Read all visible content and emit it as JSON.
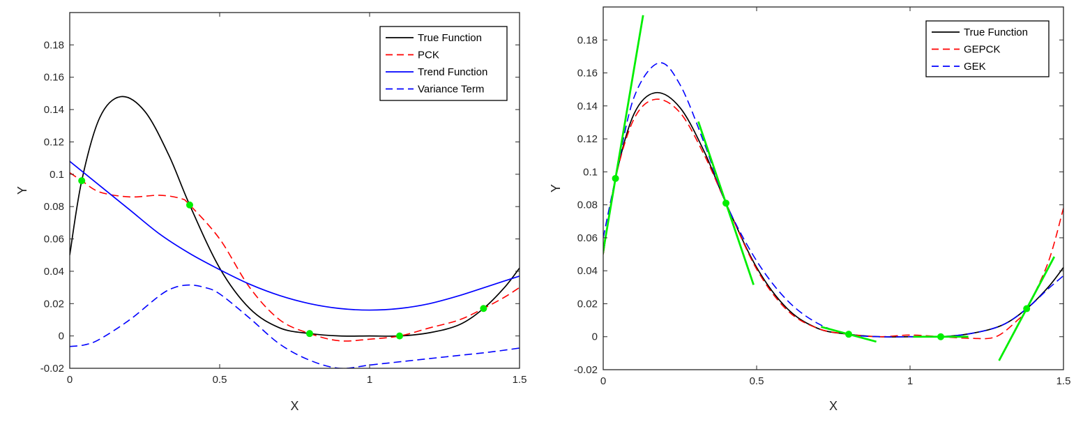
{
  "chart_data": [
    {
      "type": "line",
      "xlabel": "X",
      "ylabel": "Y",
      "xlim": [
        0,
        1.5
      ],
      "ylim": [
        -0.02,
        0.2
      ],
      "xticks": [
        0,
        0.5,
        1,
        1.5
      ],
      "xtick_labels": [
        "0",
        "0.5",
        "1",
        "1.5"
      ],
      "yticks": [
        -0.02,
        0,
        0.02,
        0.04,
        0.06,
        0.08,
        0.1,
        0.12,
        0.14,
        0.16,
        0.18
      ],
      "ytick_labels": [
        "-0.02",
        "0",
        "0.02",
        "0.04",
        "0.06",
        "0.08",
        "0.1",
        "0.12",
        "0.14",
        "0.16",
        "0.18"
      ],
      "grid": false,
      "legend_position": "top-right",
      "series": [
        {
          "name": "True Function",
          "color": "#000000",
          "dash": "solid",
          "x": [
            0,
            0.04,
            0.1,
            0.17,
            0.25,
            0.33,
            0.4,
            0.5,
            0.6,
            0.7,
            0.8,
            0.9,
            1.0,
            1.1,
            1.2,
            1.3,
            1.38,
            1.45,
            1.5
          ],
          "y": [
            0.05,
            0.096,
            0.135,
            0.148,
            0.139,
            0.112,
            0.081,
            0.042,
            0.017,
            0.005,
            0.0015,
            0.0,
            0.0,
            0.0,
            0.002,
            0.007,
            0.017,
            0.03,
            0.042
          ]
        },
        {
          "name": "PCK",
          "color": "#ff0000",
          "dash": "dashed",
          "x": [
            0,
            0.04,
            0.1,
            0.2,
            0.3,
            0.37,
            0.4,
            0.5,
            0.6,
            0.7,
            0.8,
            0.9,
            1.0,
            1.1,
            1.2,
            1.3,
            1.38,
            1.45,
            1.5
          ],
          "y": [
            0.101,
            0.096,
            0.089,
            0.086,
            0.087,
            0.085,
            0.081,
            0.06,
            0.03,
            0.01,
            0.0015,
            -0.003,
            -0.002,
            0.0,
            0.005,
            0.01,
            0.017,
            0.024,
            0.03
          ]
        },
        {
          "name": "Trend Function",
          "color": "#0000ff",
          "dash": "solid",
          "x": [
            0,
            0.1,
            0.2,
            0.3,
            0.4,
            0.5,
            0.6,
            0.7,
            0.8,
            0.9,
            1.0,
            1.1,
            1.2,
            1.3,
            1.4,
            1.5
          ],
          "y": [
            0.108,
            0.093,
            0.078,
            0.063,
            0.051,
            0.041,
            0.032,
            0.025,
            0.02,
            0.017,
            0.016,
            0.017,
            0.02,
            0.025,
            0.031,
            0.037
          ]
        },
        {
          "name": "Variance Term",
          "color": "#0000ff",
          "dash": "dashed",
          "x": [
            0,
            0.05,
            0.1,
            0.2,
            0.3,
            0.35,
            0.4,
            0.45,
            0.5,
            0.6,
            0.7,
            0.8,
            0.9,
            1.0,
            1.1,
            1.2,
            1.3,
            1.4,
            1.5
          ],
          "y": [
            -0.0065,
            -0.0055,
            -0.002,
            0.01,
            0.025,
            0.03,
            0.0315,
            0.03,
            0.026,
            0.011,
            -0.005,
            -0.015,
            -0.02,
            -0.018,
            -0.016,
            -0.014,
            -0.012,
            -0.01,
            -0.0075
          ]
        }
      ],
      "sample_points": {
        "color": "#00ee00",
        "x": [
          0.04,
          0.4,
          0.8,
          1.1,
          1.38
        ],
        "y": [
          0.096,
          0.081,
          0.0015,
          0.0,
          0.017
        ]
      }
    },
    {
      "type": "line",
      "xlabel": "X",
      "ylabel": "Y",
      "xlim": [
        0,
        1.5
      ],
      "ylim": [
        -0.02,
        0.2
      ],
      "xticks": [
        0,
        0.5,
        1,
        1.5
      ],
      "xtick_labels": [
        "0",
        "0.5",
        "1",
        "1.5"
      ],
      "yticks": [
        -0.02,
        0,
        0.02,
        0.04,
        0.06,
        0.08,
        0.1,
        0.12,
        0.14,
        0.16,
        0.18
      ],
      "ytick_labels": [
        "-0.02",
        "0",
        "0.02",
        "0.04",
        "0.06",
        "0.08",
        "0.1",
        "0.12",
        "0.14",
        "0.16",
        "0.18"
      ],
      "grid": false,
      "legend_position": "top-right",
      "series": [
        {
          "name": "True Function",
          "color": "#000000",
          "dash": "solid",
          "x": [
            0,
            0.04,
            0.1,
            0.17,
            0.25,
            0.33,
            0.4,
            0.5,
            0.6,
            0.7,
            0.8,
            0.9,
            1.0,
            1.1,
            1.2,
            1.3,
            1.38,
            1.45,
            1.5
          ],
          "y": [
            0.05,
            0.096,
            0.135,
            0.148,
            0.139,
            0.112,
            0.081,
            0.042,
            0.017,
            0.005,
            0.0015,
            0.0,
            0.0,
            0.0,
            0.002,
            0.007,
            0.017,
            0.03,
            0.042
          ]
        },
        {
          "name": "GEPCK",
          "color": "#ff0000",
          "dash": "dashed",
          "x": [
            0,
            0.04,
            0.1,
            0.17,
            0.25,
            0.33,
            0.4,
            0.5,
            0.6,
            0.7,
            0.8,
            0.9,
            1.0,
            1.1,
            1.2,
            1.28,
            1.35,
            1.38,
            1.45,
            1.5
          ],
          "y": [
            0.05,
            0.096,
            0.132,
            0.144,
            0.136,
            0.11,
            0.081,
            0.041,
            0.016,
            0.005,
            0.0015,
            0.0,
            0.001,
            0.0,
            -0.001,
            0.0,
            0.01,
            0.017,
            0.045,
            0.078
          ]
        },
        {
          "name": "GEK",
          "color": "#0000ff",
          "dash": "dashed",
          "x": [
            0,
            0.04,
            0.1,
            0.18,
            0.25,
            0.33,
            0.4,
            0.5,
            0.6,
            0.7,
            0.8,
            0.9,
            1.0,
            1.1,
            1.2,
            1.3,
            1.38,
            1.45,
            1.5
          ],
          "y": [
            0.06,
            0.096,
            0.145,
            0.166,
            0.153,
            0.117,
            0.081,
            0.046,
            0.022,
            0.008,
            0.0015,
            0.0,
            0.0,
            0.0,
            0.002,
            0.007,
            0.017,
            0.029,
            0.037
          ]
        }
      ],
      "sample_points": {
        "color": "#00ee00",
        "x": [
          0.04,
          0.4,
          0.8,
          1.1,
          1.38
        ],
        "y": [
          0.096,
          0.081,
          0.0015,
          0.0,
          0.017
        ],
        "slopes": [
          1.1,
          -0.55,
          -0.05,
          0.0,
          0.35
        ]
      }
    }
  ]
}
